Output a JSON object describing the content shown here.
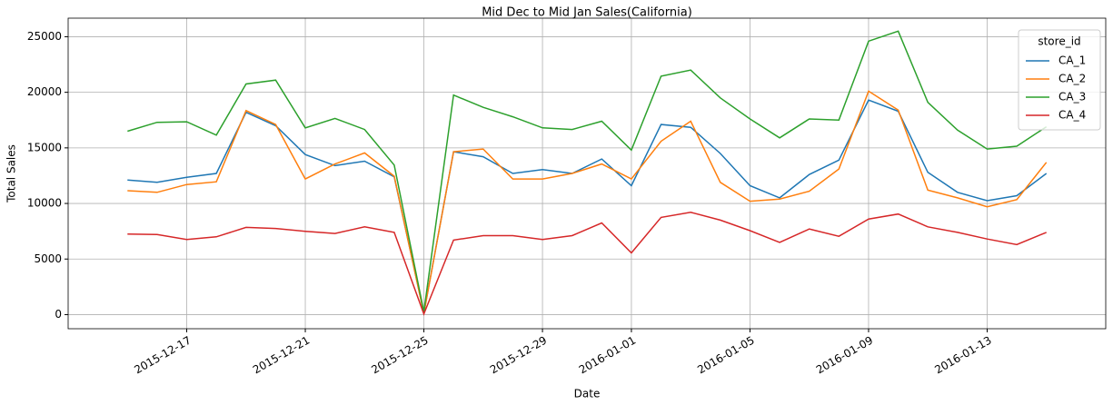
{
  "chart_data": {
    "type": "line",
    "title": "Mid Dec to Mid Jan Sales(California)",
    "xlabel": "Date",
    "ylabel": "Total Sales",
    "x": [
      "2015-12-15",
      "2015-12-16",
      "2015-12-17",
      "2015-12-18",
      "2015-12-19",
      "2015-12-20",
      "2015-12-21",
      "2015-12-22",
      "2015-12-23",
      "2015-12-24",
      "2015-12-25",
      "2015-12-26",
      "2015-12-27",
      "2015-12-28",
      "2015-12-29",
      "2015-12-30",
      "2015-12-31",
      "2016-01-01",
      "2016-01-02",
      "2016-01-03",
      "2016-01-04",
      "2016-01-05",
      "2016-01-06",
      "2016-01-07",
      "2016-01-08",
      "2016-01-09",
      "2016-01-10",
      "2016-01-11",
      "2016-01-12",
      "2016-01-13",
      "2016-01-14",
      "2016-01-15"
    ],
    "series": [
      {
        "name": "CA_1",
        "color": "#1f77b4",
        "values": [
          12100,
          11900,
          12350,
          12700,
          18200,
          17000,
          14400,
          13400,
          13800,
          12400,
          150,
          14650,
          14200,
          12700,
          13050,
          12700,
          14000,
          11600,
          17100,
          16850,
          14500,
          11600,
          10500,
          12600,
          13900,
          19300,
          18300,
          12800,
          11000,
          10250,
          10700,
          12700
        ]
      },
      {
        "name": "CA_2",
        "color": "#ff7f0e",
        "values": [
          11150,
          11000,
          11700,
          11950,
          18350,
          17100,
          12200,
          13550,
          14550,
          12450,
          100,
          14650,
          14900,
          12200,
          12200,
          12700,
          13550,
          12200,
          15600,
          17400,
          11900,
          10200,
          10400,
          11100,
          13100,
          20100,
          18400,
          11200,
          10500,
          9700,
          10350,
          13700
        ]
      },
      {
        "name": "CA_3",
        "color": "#2ca02c",
        "values": [
          16500,
          17300,
          17350,
          16150,
          20750,
          21100,
          16800,
          17650,
          16650,
          13450,
          250,
          19750,
          18650,
          17800,
          16800,
          16650,
          17400,
          14800,
          21450,
          22000,
          19500,
          17600,
          15900,
          17600,
          17500,
          24600,
          25500,
          19100,
          16600,
          14900,
          15150,
          16900
        ]
      },
      {
        "name": "CA_4",
        "color": "#d62728",
        "values": [
          7250,
          7200,
          6750,
          7000,
          7850,
          7750,
          7500,
          7300,
          7900,
          7400,
          50,
          6700,
          7100,
          7100,
          6750,
          7100,
          8250,
          5550,
          8750,
          9200,
          8500,
          7550,
          6500,
          7700,
          7050,
          8600,
          9050,
          7900,
          7400,
          6800,
          6300,
          7400
        ]
      }
    ],
    "xlim": [
      "2015-12-13",
      "2016-01-17"
    ],
    "xticks": [
      "2015-12-17",
      "2015-12-21",
      "2015-12-25",
      "2015-12-29",
      "2016-01-01",
      "2016-01-05",
      "2016-01-09",
      "2016-01-13"
    ],
    "ylim": [
      -1270,
      26670
    ],
    "yticks": [
      0,
      5000,
      10000,
      15000,
      20000,
      25000
    ],
    "grid": true,
    "legend": "upper right",
    "legend_title": "store_id"
  }
}
